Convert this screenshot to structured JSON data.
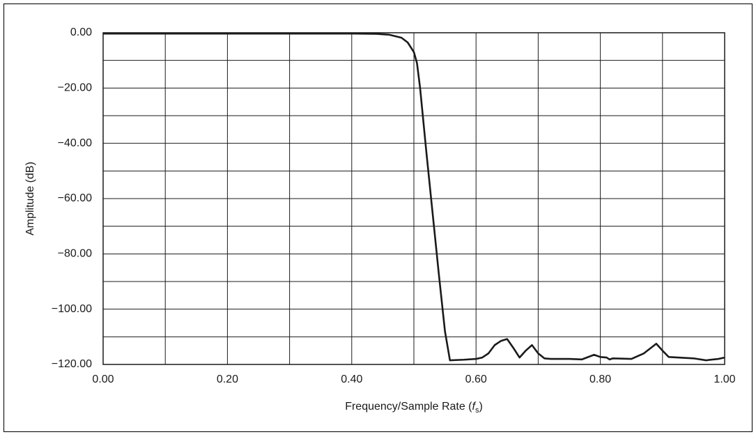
{
  "chart_data": {
    "type": "line",
    "ylabel": "Amplitude (dB)",
    "xlabel": [
      "Frequency/Sample Rate (",
      "f",
      "s",
      ")"
    ],
    "xlim": [
      0,
      1
    ],
    "ylim": [
      -120,
      0
    ],
    "xticks": [
      {
        "value": 0,
        "label": "0.00"
      },
      {
        "value": 0.2,
        "label": "0.20"
      },
      {
        "value": 0.4,
        "label": "0.40"
      },
      {
        "value": 0.6,
        "label": "0.60"
      },
      {
        "value": 0.8,
        "label": "0.80"
      },
      {
        "value": 1,
        "label": "1.00"
      }
    ],
    "xminorticks": [
      0.1,
      0.3,
      0.5,
      0.7,
      0.9
    ],
    "yticks": [
      {
        "value": 0,
        "label": "0.00"
      },
      {
        "value": -20,
        "label": "−20.00"
      },
      {
        "value": -40,
        "label": "−40.00"
      },
      {
        "value": -60,
        "label": "−60.00"
      },
      {
        "value": -80,
        "label": "−80.00"
      },
      {
        "value": -100,
        "label": "−100.00"
      },
      {
        "value": -120,
        "label": "−120.00"
      }
    ],
    "yminorticks": [
      -10,
      -30,
      -50,
      -70,
      -90,
      -110
    ],
    "grid": true,
    "series": [
      {
        "color": "#1a1a1a",
        "x": [
          0,
          0.1,
          0.2,
          0.3,
          0.4,
          0.44,
          0.46,
          0.48,
          0.49,
          0.5,
          0.505,
          0.51,
          0.52,
          0.53,
          0.54,
          0.55,
          0.558,
          0.58,
          0.6,
          0.61,
          0.62,
          0.63,
          0.64,
          0.65,
          0.66,
          0.67,
          0.68,
          0.69,
          0.7,
          0.71,
          0.72,
          0.75,
          0.77,
          0.79,
          0.8,
          0.81,
          0.815,
          0.82,
          0.85,
          0.87,
          0.89,
          0.9,
          0.91,
          0.95,
          0.97,
          0.99,
          1
        ],
        "values": [
          -0.3,
          -0.3,
          -0.3,
          -0.3,
          -0.3,
          -0.4,
          -0.7,
          -1.8,
          -3.5,
          -7,
          -11,
          -20,
          -43,
          -65,
          -87,
          -108,
          -118.5,
          -118.3,
          -118,
          -117.5,
          -116,
          -113,
          -111.5,
          -110.8,
          -114,
          -117.5,
          -115,
          -113,
          -116,
          -117.8,
          -118,
          -118,
          -118.2,
          -116.5,
          -117.3,
          -117.5,
          -118.2,
          -117.8,
          -118,
          -116,
          -112.5,
          -115,
          -117.3,
          -117.8,
          -118.5,
          -118,
          -117.5
        ]
      }
    ]
  }
}
